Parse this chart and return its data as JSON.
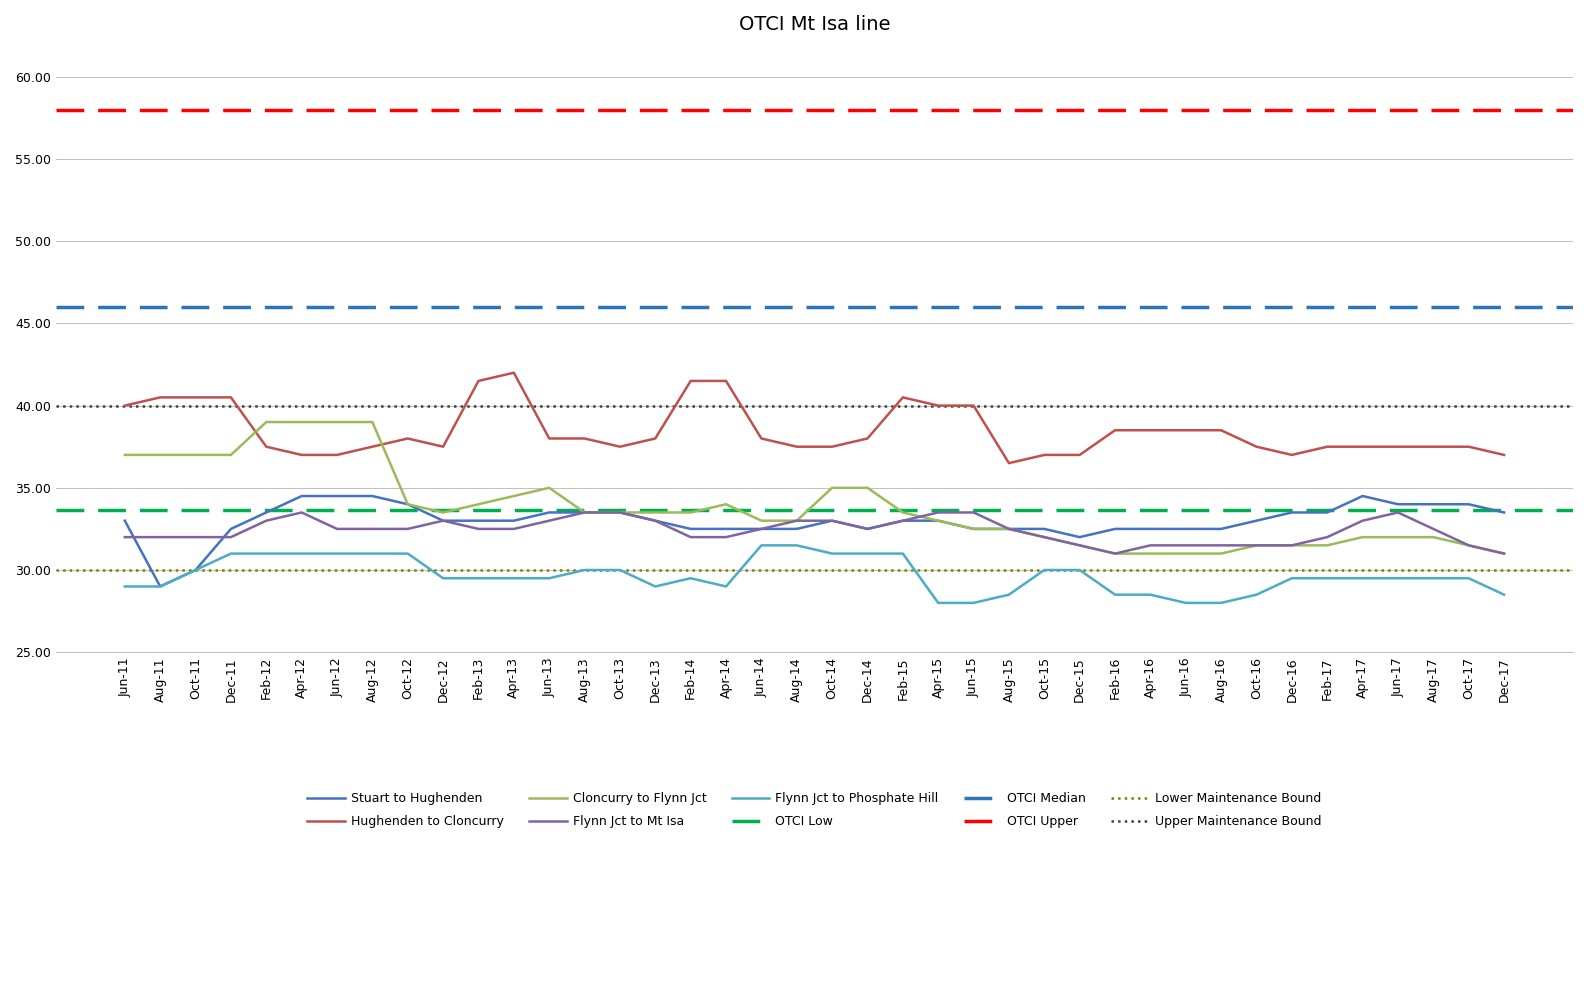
{
  "title": "OTCI Mt Isa line",
  "x_labels": [
    "Jun-11",
    "Aug-11",
    "Oct-11",
    "Dec-11",
    "Feb-12",
    "Apr-12",
    "Jun-12",
    "Aug-12",
    "Oct-12",
    "Dec-12",
    "Feb-13",
    "Apr-13",
    "Jun-13",
    "Aug-13",
    "Oct-13",
    "Dec-13",
    "Feb-14",
    "Apr-14",
    "Jun-14",
    "Aug-14",
    "Oct-14",
    "Dec-14",
    "Feb-15",
    "Apr-15",
    "Jun-15",
    "Aug-15",
    "Oct-15",
    "Dec-15",
    "Feb-16",
    "Apr-16",
    "Jun-16",
    "Aug-16",
    "Oct-16",
    "Dec-16",
    "Feb-17",
    "Apr-17",
    "Jun-17",
    "Aug-17",
    "Oct-17",
    "Dec-17"
  ],
  "series": {
    "Stuart to Hughenden": {
      "color": "#4472C4",
      "values": [
        33.0,
        29.0,
        30.0,
        32.5,
        33.5,
        34.5,
        34.5,
        34.5,
        34.0,
        33.0,
        33.0,
        33.0,
        33.5,
        33.5,
        33.5,
        33.0,
        32.5,
        32.5,
        32.5,
        32.5,
        33.0,
        32.5,
        33.0,
        33.0,
        32.5,
        32.5,
        32.5,
        32.0,
        32.5,
        32.5,
        32.5,
        32.5,
        33.0,
        33.5,
        33.5,
        34.5,
        34.0,
        34.0,
        34.0,
        33.5
      ]
    },
    "Hughenden to Cloncurry": {
      "color": "#C0504D",
      "values": [
        40.0,
        40.5,
        40.5,
        40.5,
        37.5,
        37.0,
        37.0,
        37.5,
        38.0,
        37.5,
        41.5,
        42.0,
        38.0,
        38.0,
        37.5,
        38.0,
        41.5,
        41.5,
        38.0,
        37.5,
        37.5,
        38.0,
        40.5,
        40.0,
        40.0,
        36.5,
        37.0,
        37.0,
        38.5,
        38.5,
        38.5,
        38.5,
        37.5,
        37.0,
        37.5,
        37.5,
        37.5,
        37.5,
        37.5,
        37.0
      ]
    },
    "Cloncurry to Flynn Jct": {
      "color": "#9BBB59",
      "values": [
        37.0,
        37.0,
        37.0,
        37.0,
        39.0,
        39.0,
        39.0,
        39.0,
        34.0,
        33.5,
        34.0,
        34.5,
        35.0,
        33.5,
        33.5,
        33.5,
        33.5,
        34.0,
        33.0,
        33.0,
        35.0,
        35.0,
        33.5,
        33.0,
        32.5,
        32.5,
        32.0,
        31.5,
        31.0,
        31.0,
        31.0,
        31.0,
        31.5,
        31.5,
        31.5,
        32.0,
        32.0,
        32.0,
        31.5,
        31.0
      ]
    },
    "Flynn Jct to Mt Isa": {
      "color": "#8064A2",
      "values": [
        32.0,
        32.0,
        32.0,
        32.0,
        33.0,
        33.5,
        32.5,
        32.5,
        32.5,
        33.0,
        32.5,
        32.5,
        33.0,
        33.5,
        33.5,
        33.0,
        32.0,
        32.0,
        32.5,
        33.0,
        33.0,
        32.5,
        33.0,
        33.5,
        33.5,
        32.5,
        32.0,
        31.5,
        31.0,
        31.5,
        31.5,
        31.5,
        31.5,
        31.5,
        32.0,
        33.0,
        33.5,
        32.5,
        31.5,
        31.0
      ]
    },
    "Flynn Jct to Phosphate Hill": {
      "color": "#4BACC6",
      "values": [
        29.0,
        29.0,
        30.0,
        31.0,
        31.0,
        31.0,
        31.0,
        31.0,
        31.0,
        29.5,
        29.5,
        29.5,
        29.5,
        30.0,
        30.0,
        29.0,
        29.5,
        29.0,
        31.5,
        31.5,
        31.0,
        31.0,
        31.0,
        28.0,
        28.0,
        28.5,
        30.0,
        30.0,
        28.5,
        28.5,
        28.0,
        28.0,
        28.5,
        29.5,
        29.5,
        29.5,
        29.5,
        29.5,
        29.5,
        28.5
      ]
    }
  },
  "reference_lines": {
    "OTCI Low": {
      "value": 33.67,
      "color": "#00B050",
      "linestyle": "--",
      "linewidth": 2.5,
      "dashes": [
        8,
        4
      ]
    },
    "OTCI Median": {
      "value": 46.0,
      "color": "#2E75B6",
      "linestyle": "--",
      "linewidth": 2.5,
      "dashes": [
        8,
        4
      ]
    },
    "OTCI Upper": {
      "value": 58.0,
      "color": "#FF0000",
      "linestyle": "--",
      "linewidth": 2.5,
      "dashes": [
        8,
        4
      ]
    },
    "Lower Maintenance Bound": {
      "value": 30.0,
      "color": "#7F7F00",
      "linestyle": ":",
      "linewidth": 1.8,
      "dashes": null
    },
    "Upper Maintenance Bound": {
      "value": 40.0,
      "color": "#404040",
      "linestyle": ":",
      "linewidth": 1.8,
      "dashes": null
    }
  },
  "ylim": [
    25.0,
    62.0
  ],
  "yticks": [
    25.0,
    30.0,
    35.0,
    40.0,
    45.0,
    50.0,
    55.0,
    60.0
  ],
  "background_color": "#FFFFFF",
  "title_fontsize": 14,
  "tick_fontsize": 9,
  "legend_fontsize": 9,
  "linewidth": 1.8
}
